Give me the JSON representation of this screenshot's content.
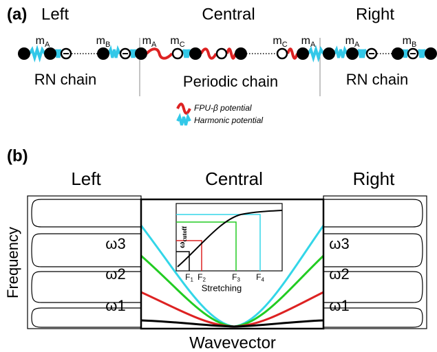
{
  "panel_a": {
    "label": "(a)",
    "sections": [
      "Left",
      "Central",
      "Right"
    ],
    "masses": [
      {
        "base": "m",
        "sub": "A"
      },
      {
        "base": "m",
        "sub": "B"
      },
      {
        "base": "m",
        "sub": "A"
      },
      {
        "base": "m",
        "sub": "C"
      },
      {
        "base": "m",
        "sub": "C"
      },
      {
        "base": "m",
        "sub": "A"
      },
      {
        "base": "m",
        "sub": "A"
      },
      {
        "base": "m",
        "sub": "B"
      }
    ],
    "chain_labels": [
      "RN chain",
      "Periodic chain",
      "RN chain"
    ],
    "legend": [
      "FPU-β potential",
      "Harmonic potential"
    ]
  },
  "panel_b": {
    "label": "(b)",
    "sections": [
      "Left",
      "Central",
      "Right"
    ],
    "y_label": "Frequency",
    "x_label": "Wavevector",
    "left_levels": [
      "ω3",
      "ω2",
      "ω1"
    ],
    "right_levels": [
      "ω3",
      "ω2",
      "ω1"
    ],
    "inset": {
      "y_label": {
        "base": "ω",
        "sub": "cutoff"
      },
      "x_label": "Stretching",
      "ticks": [
        {
          "base": "F",
          "sub": "1"
        },
        {
          "base": "F",
          "sub": "2"
        },
        {
          "base": "F",
          "sub": "3"
        },
        {
          "base": "F",
          "sub": "4"
        }
      ]
    }
  }
}
